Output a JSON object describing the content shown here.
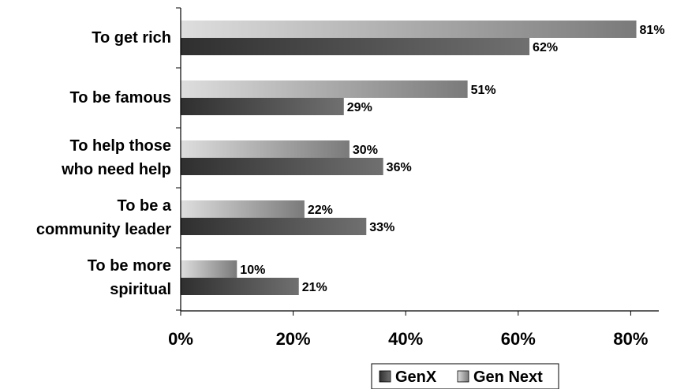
{
  "chart_data": {
    "type": "bar",
    "orientation": "horizontal",
    "categories": [
      [
        "To get rich"
      ],
      [
        "To be famous"
      ],
      [
        "To help those",
        "who need help"
      ],
      [
        "To be a",
        "community leader"
      ],
      [
        "To be more",
        "spiritual"
      ]
    ],
    "series": [
      {
        "name": "GenX",
        "values": [
          62,
          29,
          36,
          33,
          21
        ],
        "labels": [
          "62%",
          "29%",
          "36%",
          "33%",
          "21%"
        ],
        "color_dark": "#2f2f2f",
        "color_light": "#707070"
      },
      {
        "name": "Gen Next",
        "values": [
          81,
          51,
          30,
          22,
          10
        ],
        "labels": [
          "81%",
          "51%",
          "30%",
          "22%",
          "10%"
        ],
        "color_dark": "#7a7a7a",
        "color_light": "#dedede"
      }
    ],
    "xlim": [
      0,
      80
    ],
    "x_ticks": [
      0,
      20,
      40,
      60,
      80
    ],
    "x_tick_labels": [
      "0%",
      "20%",
      "40%",
      "60%",
      "80%"
    ],
    "grid": false,
    "legend_position": "bottom-right"
  }
}
